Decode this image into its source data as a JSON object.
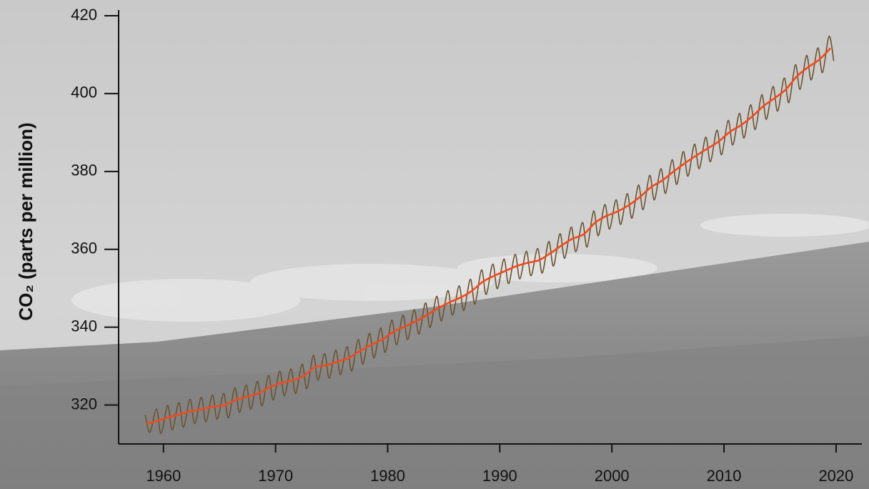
{
  "chart_data": {
    "type": "line",
    "ylabel": "CO₂ (parts per million)",
    "xlim": [
      1956,
      2022.3
    ],
    "ylim": [
      310,
      420
    ],
    "xticks": [
      1960,
      1970,
      1980,
      1990,
      2000,
      2010,
      2020
    ],
    "yticks": [
      320,
      340,
      360,
      380,
      400,
      420
    ],
    "series": [
      {
        "color": "#6b5330",
        "x": [
          1958.37,
          1958.79,
          1959.37,
          1959.79,
          1960.37,
          1960.79,
          1961.37,
          1961.79,
          1962.37,
          1962.79,
          1963.37,
          1963.79,
          1964.37,
          1964.79,
          1965.37,
          1965.79,
          1966.37,
          1966.79,
          1967.37,
          1967.79,
          1968.37,
          1968.79,
          1969.37,
          1969.79,
          1970.37,
          1970.79,
          1971.37,
          1971.79,
          1972.37,
          1972.79,
          1973.37,
          1973.79,
          1974.37,
          1974.79,
          1975.37,
          1975.79,
          1976.37,
          1976.79,
          1977.37,
          1977.79,
          1978.37,
          1978.79,
          1979.37,
          1979.79,
          1980.37,
          1980.79,
          1981.37,
          1981.79,
          1982.37,
          1982.79,
          1983.37,
          1983.79,
          1984.37,
          1984.79,
          1985.37,
          1985.79,
          1986.37,
          1986.79,
          1987.37,
          1987.79,
          1988.37,
          1988.79,
          1989.37,
          1989.79,
          1990.37,
          1990.79,
          1991.37,
          1991.79,
          1992.37,
          1992.79,
          1993.37,
          1993.79,
          1994.37,
          1994.79,
          1995.37,
          1995.79,
          1996.37,
          1996.79,
          1997.37,
          1997.79,
          1998.37,
          1998.79,
          1999.37,
          1999.79,
          2000.37,
          2000.79,
          2001.37,
          2001.79,
          2002.37,
          2002.79,
          2003.37,
          2003.79,
          2004.37,
          2004.79,
          2005.37,
          2005.79,
          2006.37,
          2006.79,
          2007.37,
          2007.79,
          2008.37,
          2008.79,
          2009.37,
          2009.79,
          2010.37,
          2010.79,
          2011.37,
          2011.79,
          2012.37,
          2012.79,
          2013.37,
          2013.79,
          2014.37,
          2014.79,
          2015.37,
          2015.79,
          2016.37,
          2016.79,
          2017.37,
          2017.79,
          2018.37,
          2018.79,
          2019.37,
          2019.79
        ],
        "values": [
          317.5,
          313.0,
          319.0,
          312.7,
          319.9,
          313.6,
          320.6,
          314.3,
          321.5,
          315.2,
          322.0,
          315.7,
          322.6,
          316.3,
          323.0,
          316.7,
          324.4,
          318.1,
          325.2,
          318.9,
          326.1,
          319.8,
          327.6,
          321.3,
          328.7,
          322.4,
          329.3,
          323.0,
          330.5,
          324.2,
          332.7,
          326.4,
          333.2,
          326.9,
          334.1,
          327.8,
          335.0,
          328.7,
          336.8,
          330.5,
          338.4,
          332.1,
          339.8,
          333.5,
          341.8,
          335.5,
          343.1,
          336.8,
          344.5,
          338.2,
          346.2,
          339.9,
          347.9,
          341.6,
          349.4,
          343.1,
          350.6,
          344.3,
          352.3,
          346.0,
          354.7,
          348.4,
          356.2,
          349.9,
          357.5,
          351.2,
          358.7,
          352.4,
          359.5,
          353.2,
          360.2,
          353.9,
          362.0,
          355.7,
          364.0,
          357.7,
          365.7,
          359.4,
          366.9,
          360.6,
          369.8,
          363.5,
          371.5,
          365.2,
          372.7,
          366.4,
          374.3,
          368.0,
          376.5,
          370.2,
          379.0,
          372.7,
          380.7,
          374.4,
          383.0,
          376.7,
          385.1,
          378.8,
          387.0,
          380.7,
          388.8,
          382.5,
          390.6,
          384.3,
          393.1,
          386.8,
          394.9,
          388.6,
          397.1,
          390.8,
          399.7,
          393.4,
          401.8,
          395.5,
          404.0,
          397.7,
          407.4,
          401.1,
          409.8,
          403.5,
          411.7,
          405.4,
          414.7,
          408.4
        ]
      },
      {
        "color": "#f04a1e",
        "x": [
          1958.5,
          1959.5,
          1960.5,
          1961.5,
          1962.5,
          1963.5,
          1964.5,
          1965.5,
          1966.5,
          1967.5,
          1968.5,
          1969.5,
          1970.5,
          1971.5,
          1972.5,
          1973.5,
          1974.5,
          1975.5,
          1976.5,
          1977.5,
          1978.5,
          1979.5,
          1980.5,
          1981.5,
          1982.5,
          1983.5,
          1984.5,
          1985.5,
          1986.5,
          1987.5,
          1988.5,
          1989.5,
          1990.5,
          1991.5,
          1992.5,
          1993.5,
          1994.5,
          1995.5,
          1996.5,
          1997.5,
          1998.5,
          1999.5,
          2000.5,
          2001.5,
          2002.5,
          2003.5,
          2004.5,
          2005.5,
          2006.5,
          2007.5,
          2008.5,
          2009.5,
          2010.5,
          2011.5,
          2012.5,
          2013.5,
          2014.5,
          2015.5,
          2016.5,
          2017.5,
          2018.5,
          2019.5
        ],
        "values": [
          315.2,
          315.98,
          316.91,
          317.64,
          318.45,
          318.99,
          319.62,
          320.04,
          321.37,
          322.18,
          323.05,
          324.62,
          325.68,
          326.32,
          327.46,
          329.68,
          330.19,
          331.13,
          332.03,
          333.84,
          335.41,
          336.84,
          338.76,
          340.12,
          341.48,
          343.15,
          344.85,
          346.35,
          347.61,
          349.31,
          351.69,
          353.2,
          354.45,
          355.7,
          356.54,
          357.21,
          358.96,
          360.97,
          362.74,
          363.88,
          366.84,
          368.54,
          369.71,
          371.32,
          373.45,
          375.98,
          377.7,
          379.98,
          382.09,
          384.02,
          385.83,
          387.64,
          390.1,
          391.85,
          394.06,
          396.74,
          398.81,
          401.01,
          404.41,
          406.76,
          408.72,
          411.66
        ]
      }
    ]
  }
}
